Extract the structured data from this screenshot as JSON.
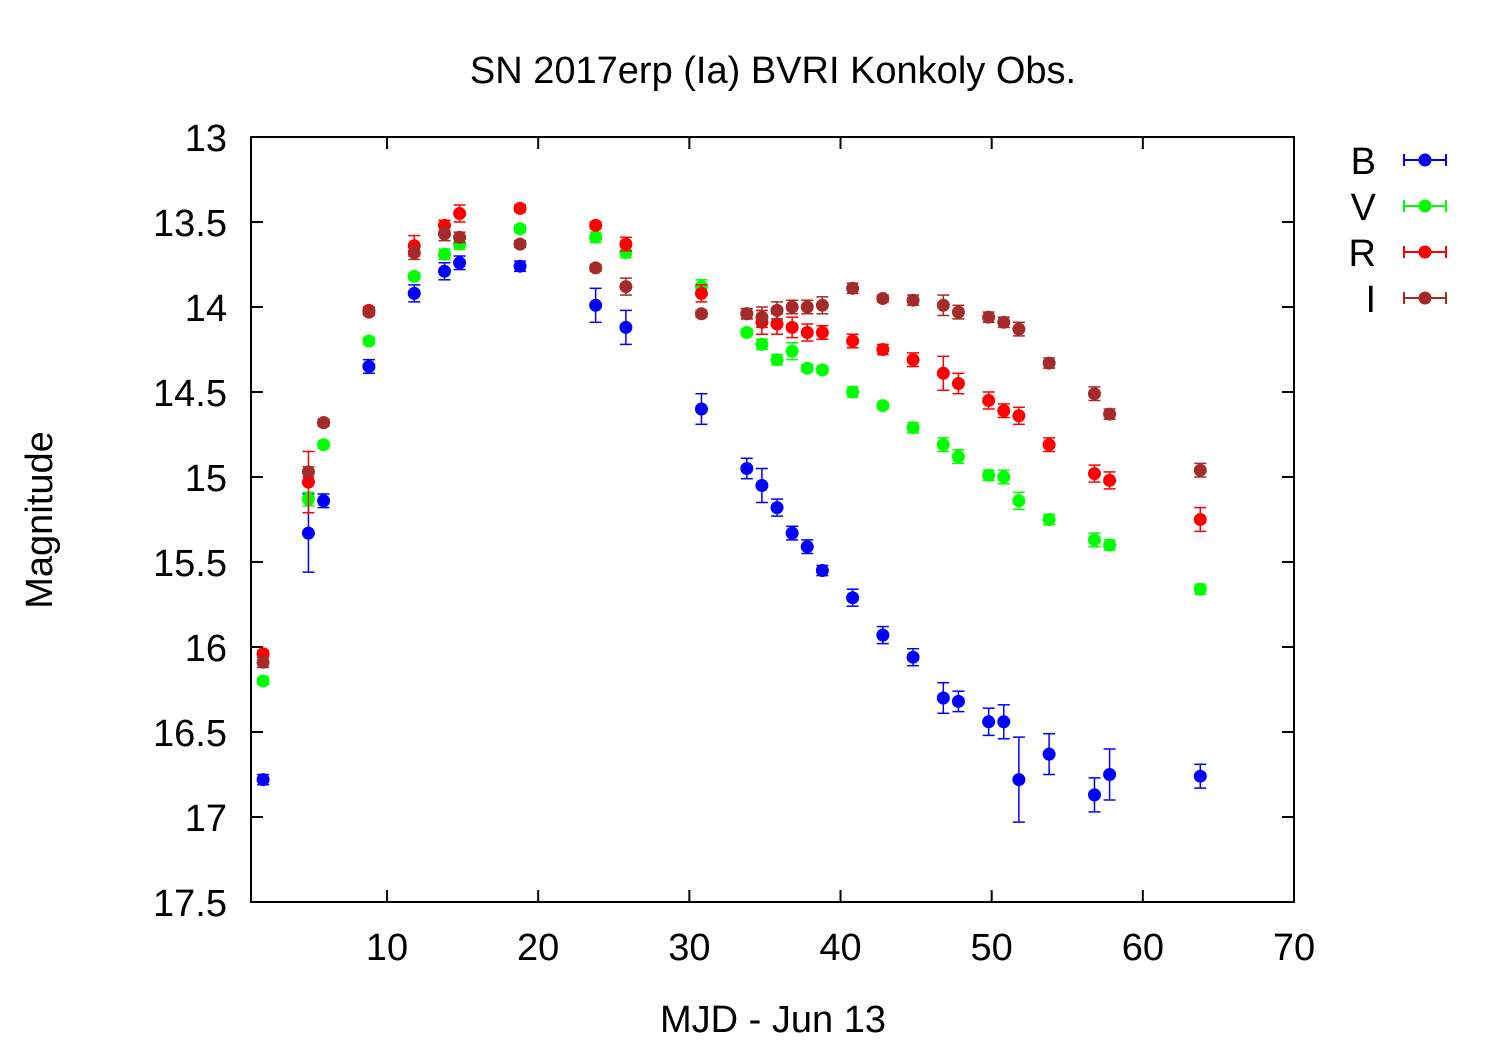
{
  "chart_data": {
    "type": "scatter",
    "title": "SN 2017erp (Ia) BVRI Konkoly Obs.",
    "xlabel": "MJD - Jun 13",
    "ylabel": "Magnitude",
    "xlim": [
      1,
      70
    ],
    "ylim": [
      13,
      17.5
    ],
    "y_inverted": true,
    "x_ticks": [
      10,
      20,
      30,
      40,
      50,
      60,
      70
    ],
    "x_tick_labels": [
      "10",
      "20",
      "30",
      "40",
      "50",
      "60",
      "70"
    ],
    "y_ticks": [
      13,
      13.5,
      14,
      14.5,
      15,
      15.5,
      16,
      16.5,
      17,
      17.5
    ],
    "y_tick_labels": [
      "13",
      "13.5",
      "14",
      "14.5",
      "15",
      "15.5",
      "16",
      "16.5",
      "17",
      "17.5"
    ],
    "grid": false,
    "legend_position": "outside-top-right",
    "error_bars": true,
    "series": [
      {
        "name": "B",
        "color": "#0000ff",
        "x": [
          1.8,
          4.8,
          5.8,
          8.8,
          11.8,
          13.8,
          14.8,
          18.8,
          23.8,
          25.8,
          30.8,
          33.8,
          34.8,
          35.8,
          36.8,
          37.8,
          38.8,
          40.8,
          42.8,
          44.8,
          46.8,
          47.8,
          49.8,
          50.8,
          51.8,
          53.8,
          56.8,
          57.8,
          63.8
        ],
        "y": [
          16.78,
          15.33,
          15.14,
          14.35,
          13.92,
          13.79,
          13.74,
          13.76,
          13.99,
          14.12,
          14.6,
          14.95,
          15.05,
          15.18,
          15.33,
          15.41,
          15.55,
          15.71,
          15.93,
          16.06,
          16.3,
          16.32,
          16.44,
          16.44,
          16.78,
          16.63,
          16.87,
          16.75,
          16.76
        ],
        "err": [
          0.03,
          0.23,
          0.04,
          0.04,
          0.05,
          0.05,
          0.04,
          0.03,
          0.1,
          0.1,
          0.09,
          0.06,
          0.1,
          0.05,
          0.04,
          0.04,
          0.03,
          0.05,
          0.05,
          0.05,
          0.09,
          0.06,
          0.08,
          0.1,
          0.25,
          0.12,
          0.1,
          0.15,
          0.07
        ]
      },
      {
        "name": "V",
        "color": "#00ff00",
        "x": [
          1.8,
          4.8,
          5.8,
          8.8,
          11.8,
          13.8,
          14.8,
          18.8,
          23.8,
          25.8,
          30.8,
          33.8,
          34.8,
          35.8,
          36.8,
          37.8,
          38.8,
          40.8,
          42.8,
          44.8,
          46.8,
          47.8,
          49.8,
          50.8,
          51.8,
          53.8,
          56.8,
          57.8,
          63.8
        ],
        "y": [
          16.2,
          15.13,
          14.81,
          14.2,
          13.82,
          13.69,
          13.63,
          13.54,
          13.59,
          13.68,
          13.88,
          14.15,
          14.22,
          14.31,
          14.26,
          14.36,
          14.37,
          14.5,
          14.58,
          14.71,
          14.81,
          14.88,
          14.99,
          15.0,
          15.14,
          15.25,
          15.37,
          15.4,
          15.66
        ],
        "err": [
          0.02,
          0.04,
          0.02,
          0.02,
          0.02,
          0.03,
          0.03,
          0.02,
          0.03,
          0.03,
          0.04,
          0.02,
          0.03,
          0.03,
          0.05,
          0.02,
          0.02,
          0.03,
          0.02,
          0.03,
          0.04,
          0.04,
          0.03,
          0.04,
          0.05,
          0.03,
          0.04,
          0.03,
          0.03
        ]
      },
      {
        "name": "R",
        "color": "#ff0000",
        "x": [
          1.8,
          4.8,
          5.8,
          8.8,
          11.8,
          13.8,
          14.8,
          18.8,
          23.8,
          25.8,
          30.8,
          33.8,
          34.8,
          35.8,
          36.8,
          37.8,
          38.8,
          40.8,
          42.8,
          44.8,
          46.8,
          47.8,
          49.8,
          50.8,
          51.8,
          53.8,
          56.8,
          57.8,
          63.8
        ],
        "y": [
          16.04,
          15.03,
          14.68,
          14.02,
          13.64,
          13.52,
          13.45,
          13.42,
          13.52,
          13.63,
          13.92,
          14.04,
          14.09,
          14.1,
          14.12,
          14.15,
          14.15,
          14.2,
          14.25,
          14.31,
          14.39,
          14.45,
          14.55,
          14.61,
          14.64,
          14.81,
          14.98,
          15.02,
          15.25
        ],
        "err": [
          0.02,
          0.18,
          0.02,
          0.02,
          0.06,
          0.03,
          0.05,
          0.02,
          0.02,
          0.04,
          0.05,
          0.03,
          0.07,
          0.06,
          0.06,
          0.05,
          0.04,
          0.04,
          0.03,
          0.04,
          0.1,
          0.06,
          0.05,
          0.04,
          0.05,
          0.04,
          0.05,
          0.05,
          0.07
        ]
      },
      {
        "name": "I",
        "color": "#a52a2a",
        "x": [
          1.8,
          4.8,
          5.8,
          8.8,
          11.8,
          13.8,
          14.8,
          18.8,
          23.8,
          25.8,
          30.8,
          33.8,
          34.8,
          35.8,
          36.8,
          37.8,
          38.8,
          40.8,
          42.8,
          44.8,
          46.8,
          47.8,
          49.8,
          50.8,
          51.8,
          53.8,
          56.8,
          57.8,
          63.8
        ],
        "y": [
          16.09,
          14.97,
          14.68,
          14.03,
          13.68,
          13.57,
          13.59,
          13.63,
          13.77,
          13.88,
          14.04,
          14.04,
          14.06,
          14.02,
          14.0,
          14.0,
          13.99,
          13.89,
          13.95,
          13.96,
          13.99,
          14.03,
          14.06,
          14.09,
          14.13,
          14.33,
          14.51,
          14.63,
          14.96
        ],
        "err": [
          0.03,
          0.03,
          0.02,
          0.02,
          0.04,
          0.04,
          0.03,
          0.02,
          0.02,
          0.05,
          0.02,
          0.03,
          0.06,
          0.05,
          0.04,
          0.04,
          0.05,
          0.03,
          0.02,
          0.03,
          0.06,
          0.04,
          0.03,
          0.03,
          0.04,
          0.03,
          0.04,
          0.03,
          0.04
        ]
      }
    ]
  }
}
